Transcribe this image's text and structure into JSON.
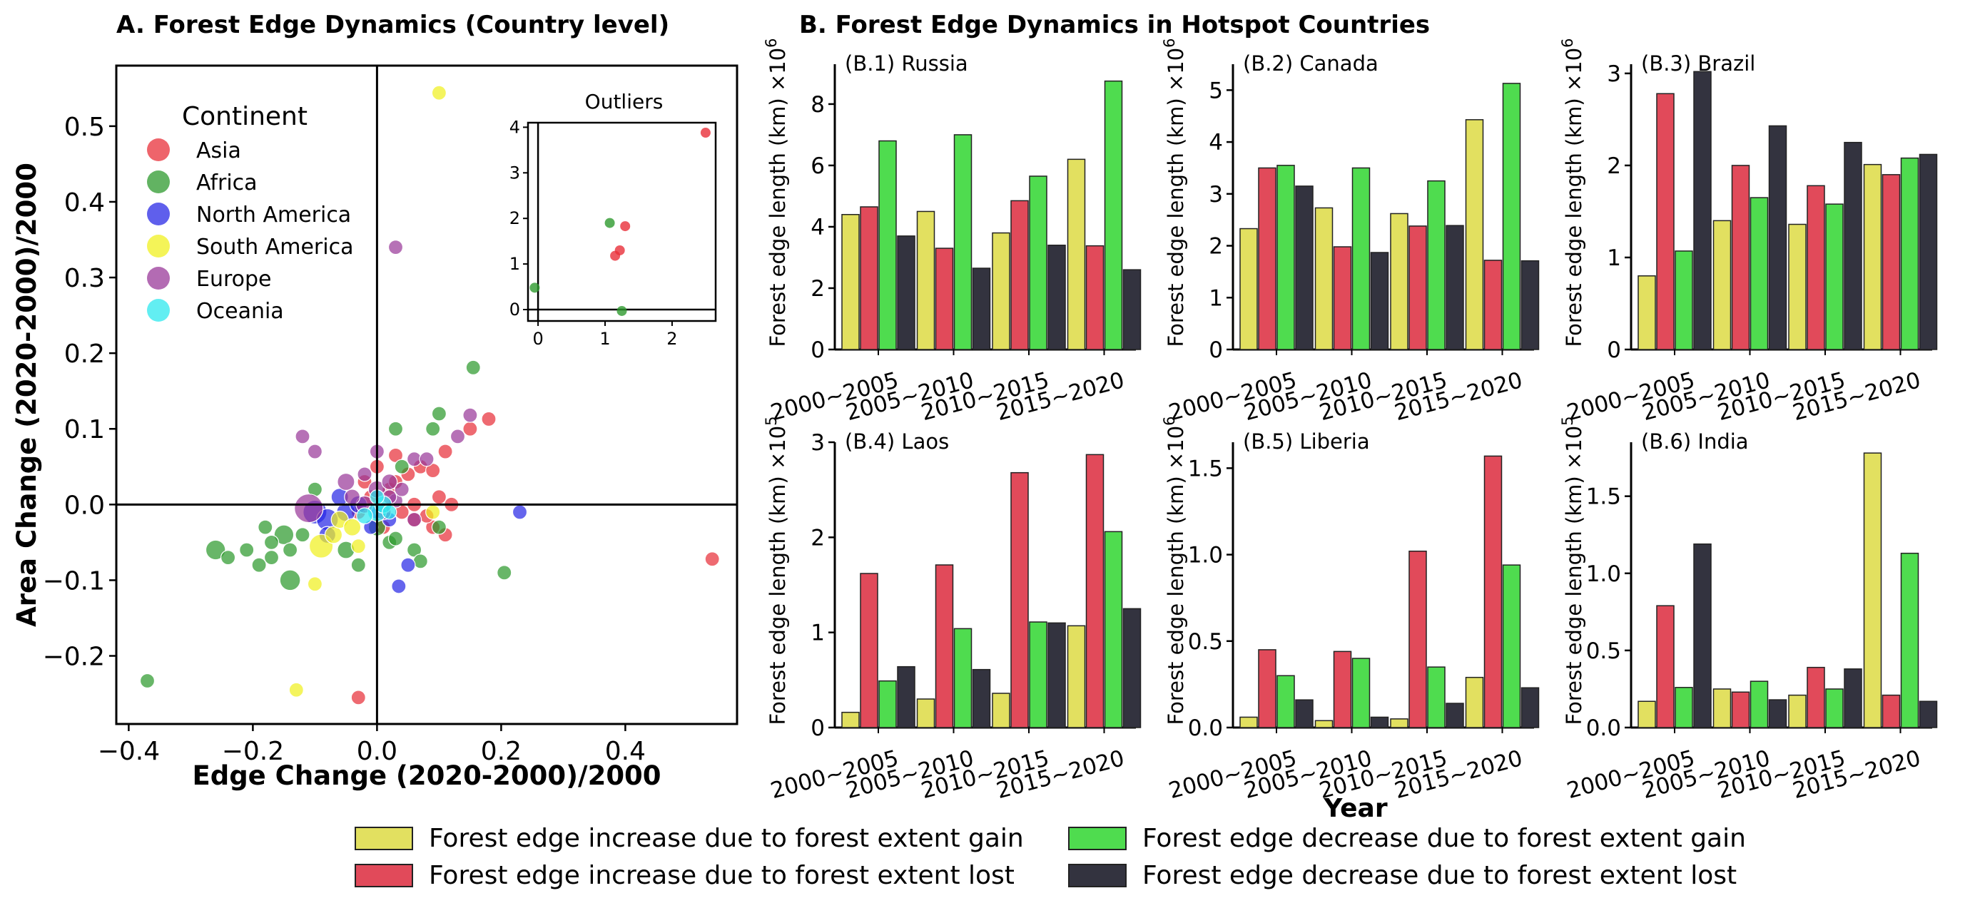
{
  "chart_data": [
    {
      "type": "scatter",
      "title": "A. Forest Edge Dynamics (Country level)",
      "xlabel": "Edge Change (2020-2000)/2000",
      "ylabel": "Area Change (2020-2000)/2000",
      "xlim": [
        -0.42,
        0.58
      ],
      "ylim": [
        -0.29,
        0.58
      ],
      "xticks": [
        -0.4,
        -0.2,
        0.0,
        0.2,
        0.4
      ],
      "xtick_labels": [
        "−0.4",
        "−0.2",
        "0.0",
        "0.2",
        "0.4"
      ],
      "yticks": [
        -0.2,
        -0.1,
        0.0,
        0.1,
        0.2,
        0.3,
        0.4,
        0.5
      ],
      "ytick_labels": [
        "−0.2",
        "−0.1",
        "0.0",
        "0.1",
        "0.2",
        "0.3",
        "0.4",
        "0.5"
      ],
      "legend_title": "Continent",
      "legend_position": "top-left",
      "series": [
        {
          "name": "Asia",
          "color": "#e8303a",
          "points": [
            [
              0.54,
              -0.072,
              1
            ],
            [
              -0.03,
              -0.255,
              1
            ],
            [
              0.03,
              0.065,
              1
            ],
            [
              0.05,
              0.04,
              1
            ],
            [
              0.07,
              0.05,
              1
            ],
            [
              0.09,
              0.045,
              1
            ],
            [
              0.11,
              0.07,
              1
            ],
            [
              0.15,
              0.1,
              1
            ],
            [
              0.18,
              0.113,
              1
            ],
            [
              0.02,
              0.02,
              1
            ],
            [
              0.04,
              -0.01,
              1
            ],
            [
              0.06,
              -0.02,
              1
            ],
            [
              0.09,
              -0.03,
              1
            ],
            [
              0.11,
              -0.04,
              1
            ],
            [
              0.06,
              0.0,
              1
            ],
            [
              -0.01,
              0.01,
              1
            ],
            [
              -0.02,
              0.03,
              1
            ],
            [
              0.01,
              -0.03,
              1
            ],
            [
              0.0,
              0.05,
              1
            ],
            [
              0.08,
              -0.015,
              1
            ],
            [
              0.1,
              0.01,
              1
            ],
            [
              0.03,
              0.03,
              1
            ],
            [
              0.12,
              0.0,
              1
            ],
            [
              -0.03,
              -0.01,
              1
            ]
          ]
        },
        {
          "name": "Africa",
          "color": "#2e9a2e",
          "points": [
            [
              -0.37,
              -0.233,
              1
            ],
            [
              -0.26,
              -0.06,
              2
            ],
            [
              -0.24,
              -0.07,
              1
            ],
            [
              -0.21,
              -0.06,
              1
            ],
            [
              -0.19,
              -0.08,
              1
            ],
            [
              -0.17,
              -0.07,
              1
            ],
            [
              -0.15,
              -0.04,
              2
            ],
            [
              -0.14,
              -0.06,
              1
            ],
            [
              -0.17,
              -0.05,
              1
            ],
            [
              -0.18,
              -0.03,
              1
            ],
            [
              -0.14,
              -0.1,
              2.2
            ],
            [
              -0.12,
              -0.04,
              1
            ],
            [
              -0.05,
              -0.06,
              1.5
            ],
            [
              -0.03,
              -0.08,
              1
            ],
            [
              0.0,
              -0.03,
              1.5
            ],
            [
              0.02,
              -0.05,
              1
            ],
            [
              0.06,
              -0.06,
              1
            ],
            [
              0.07,
              -0.075,
              1
            ],
            [
              0.1,
              -0.03,
              1
            ],
            [
              0.205,
              -0.09,
              1
            ],
            [
              0.155,
              0.181,
              1
            ],
            [
              0.1,
              0.12,
              1
            ],
            [
              0.04,
              0.05,
              1
            ],
            [
              0.03,
              0.1,
              1
            ],
            [
              0.09,
              0.1,
              1
            ],
            [
              -0.1,
              0.02,
              1
            ],
            [
              0.03,
              -0.045,
              1
            ]
          ]
        },
        {
          "name": "North America",
          "color": "#2a2ae6",
          "points": [
            [
              -0.1,
              -0.01,
              3
            ],
            [
              -0.08,
              -0.02,
              2.5
            ],
            [
              -0.05,
              -0.01,
              1.8
            ],
            [
              -0.03,
              0.0,
              1.5
            ],
            [
              -0.06,
              0.01,
              1.5
            ],
            [
              0.23,
              -0.01,
              1
            ],
            [
              0.035,
              -0.108,
              1
            ],
            [
              0.05,
              -0.08,
              1
            ],
            [
              0.02,
              -0.02,
              1
            ],
            [
              -0.01,
              -0.03,
              1
            ],
            [
              -0.08,
              -0.04,
              1.4
            ],
            [
              0.0,
              -0.01,
              1
            ]
          ]
        },
        {
          "name": "South America",
          "color": "#f0f020",
          "points": [
            [
              0.1,
              0.544,
              1
            ],
            [
              -0.13,
              -0.245,
              1
            ],
            [
              -0.09,
              -0.055,
              3
            ],
            [
              -0.1,
              -0.105,
              1
            ],
            [
              -0.07,
              -0.04,
              1.5
            ],
            [
              -0.06,
              -0.02,
              1.5
            ],
            [
              -0.04,
              -0.03,
              1.5
            ],
            [
              -0.03,
              -0.055,
              1
            ],
            [
              0.09,
              -0.01,
              1
            ]
          ]
        },
        {
          "name": "Europe",
          "color": "#9a3a9a",
          "points": [
            [
              -0.11,
              -0.005,
              4.5
            ],
            [
              0.03,
              0.34,
              1
            ],
            [
              -0.12,
              0.09,
              1
            ],
            [
              -0.1,
              0.07,
              1
            ],
            [
              0.0,
              0.07,
              1
            ],
            [
              -0.02,
              0.04,
              1
            ],
            [
              0.06,
              0.06,
              1
            ],
            [
              0.13,
              0.09,
              1
            ],
            [
              0.15,
              0.118,
              1
            ],
            [
              0.08,
              0.06,
              1
            ],
            [
              0.03,
              0.005,
              1
            ],
            [
              0.04,
              0.02,
              1
            ],
            [
              -0.02,
              0.0,
              1.5
            ],
            [
              0.0,
              0.02,
              1.5
            ],
            [
              0.02,
              0.03,
              1.2
            ],
            [
              -0.05,
              0.03,
              1.5
            ],
            [
              0.06,
              -0.02,
              1
            ],
            [
              0.02,
              0.01,
              1
            ],
            [
              0.01,
              -0.01,
              1.2
            ],
            [
              -0.04,
              0.01,
              1.2
            ]
          ]
        },
        {
          "name": "Oceania",
          "color": "#2ee8ee",
          "points": [
            [
              0.0,
              -0.01,
              1.8
            ],
            [
              0.01,
              0.0,
              1.5
            ],
            [
              -0.02,
              -0.015,
              1.3
            ],
            [
              0.02,
              -0.01,
              1
            ],
            [
              0.0,
              0.01,
              1
            ]
          ]
        }
      ],
      "inset": {
        "title": "Outliers",
        "xlim": [
          -0.15,
          2.65
        ],
        "ylim": [
          -0.25,
          4.1
        ],
        "xticks": [
          0,
          1,
          2
        ],
        "yticks": [
          0,
          1,
          2,
          3,
          4
        ],
        "points": [
          {
            "series": "Asia",
            "x": 2.5,
            "y": 3.88
          },
          {
            "series": "Asia",
            "x": 1.3,
            "y": 1.83
          },
          {
            "series": "Asia",
            "x": 1.22,
            "y": 1.3
          },
          {
            "series": "Asia",
            "x": 1.15,
            "y": 1.18
          },
          {
            "series": "Africa",
            "x": 1.07,
            "y": 1.9
          },
          {
            "series": "Africa",
            "x": -0.05,
            "y": 0.48
          },
          {
            "series": "Africa",
            "x": 1.25,
            "y": -0.03
          }
        ]
      }
    },
    {
      "type": "bar",
      "group_title": "B. Forest Edge Dynamics in Hotspot Countries",
      "shared_xlabel": "Year",
      "categories": [
        "2000~2005",
        "2005~2010",
        "2010~2015",
        "2015~2020"
      ],
      "series_names": [
        "Forest edge increase due to forest extent gain",
        "Forest edge increase due to forest extent lost",
        "Forest edge decrease due to forest extent gain",
        "Forest edge decrease due to forest extent lost"
      ],
      "series_colors": [
        "#e2e060",
        "#e14a5a",
        "#4fdc4f",
        "#33333f"
      ],
      "legend_position": "bottom-center",
      "panels": [
        {
          "title": "(B.1) Russia",
          "ylabel": "Forest edge length (km) ×10",
          "exponent": "6",
          "ylim": [
            0,
            9.3
          ],
          "yticks": [
            0,
            2,
            4,
            6,
            8
          ],
          "ytick_labels": [
            "0",
            "2",
            "4",
            "6",
            "8"
          ],
          "values": [
            [
              4.4,
              4.65,
              6.8,
              3.7
            ],
            [
              4.5,
              3.3,
              7.0,
              2.65
            ],
            [
              3.8,
              4.85,
              5.65,
              3.4
            ],
            [
              6.2,
              3.38,
              8.75,
              2.6
            ]
          ]
        },
        {
          "title": "(B.2) Canada",
          "ylabel": "Forest edge length (km) ×10",
          "exponent": "6",
          "ylim": [
            0,
            5.5
          ],
          "yticks": [
            0,
            1,
            2,
            3,
            4,
            5
          ],
          "ytick_labels": [
            "0",
            "1",
            "2",
            "3",
            "4",
            "5"
          ],
          "values": [
            [
              2.33,
              3.5,
              3.55,
              3.15
            ],
            [
              2.73,
              1.98,
              3.5,
              1.87
            ],
            [
              2.62,
              2.38,
              3.25,
              2.39
            ],
            [
              4.43,
              1.72,
              5.13,
              1.71
            ]
          ]
        },
        {
          "title": "(B.3) Brazil",
          "ylabel": "Forest edge length (km) ×10",
          "exponent": "6",
          "ylim": [
            0,
            3.1
          ],
          "yticks": [
            0,
            1,
            2,
            3
          ],
          "ytick_labels": [
            "0",
            "1",
            "2",
            "3"
          ],
          "values": [
            [
              0.8,
              2.78,
              1.07,
              3.02
            ],
            [
              1.4,
              2.0,
              1.65,
              2.43
            ],
            [
              1.36,
              1.78,
              1.58,
              2.25
            ],
            [
              2.01,
              1.9,
              2.08,
              2.12
            ]
          ]
        },
        {
          "title": "(B.4) Laos",
          "ylabel": "Forest edge length (km) ×10",
          "exponent": "5",
          "ylim": [
            0,
            3.0
          ],
          "yticks": [
            0,
            1,
            2,
            3
          ],
          "ytick_labels": [
            "0",
            "1",
            "2",
            "3"
          ],
          "values": [
            [
              0.16,
              1.62,
              0.49,
              0.64
            ],
            [
              0.3,
              1.71,
              1.04,
              0.61
            ],
            [
              0.36,
              2.68,
              1.11,
              1.1
            ],
            [
              1.07,
              2.87,
              2.06,
              1.25
            ]
          ]
        },
        {
          "title": "(B.5) Liberia",
          "ylabel": "Forest edge length (km) ×10",
          "exponent": "6",
          "ylim": [
            0,
            1.65
          ],
          "yticks": [
            0,
            0.5,
            1.0,
            1.5
          ],
          "ytick_labels": [
            "0.0",
            "0.5",
            "1.0",
            "1.5"
          ],
          "values": [
            [
              0.06,
              0.45,
              0.3,
              0.16
            ],
            [
              0.04,
              0.44,
              0.4,
              0.06
            ],
            [
              0.05,
              1.02,
              0.35,
              0.14
            ],
            [
              0.29,
              1.57,
              0.94,
              0.23
            ]
          ]
        },
        {
          "title": "(B.6) India",
          "ylabel": "Forest edge length (km) ×10",
          "exponent": "5",
          "ylim": [
            0,
            1.85
          ],
          "yticks": [
            0,
            0.5,
            1.0,
            1.5
          ],
          "ytick_labels": [
            "0.0",
            "0.5",
            "1.0",
            "1.5"
          ],
          "values": [
            [
              0.17,
              0.79,
              0.26,
              1.19
            ],
            [
              0.25,
              0.23,
              0.3,
              0.18
            ],
            [
              0.21,
              0.39,
              0.25,
              0.38
            ],
            [
              1.78,
              0.21,
              1.13,
              0.17
            ]
          ]
        }
      ]
    }
  ]
}
